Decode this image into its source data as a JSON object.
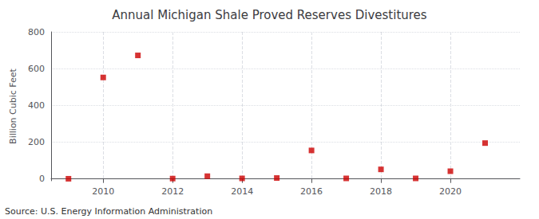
{
  "chart_data": {
    "type": "scatter",
    "title": "Annual Michigan Shale Proved Reserves Divestitures",
    "ylabel": "Billion Cubic Feet",
    "annotations": [
      "Source: U.S. Energy Information Administration"
    ],
    "x": [
      2009,
      2010,
      2011,
      2012,
      2013,
      2014,
      2015,
      2016,
      2017,
      2018,
      2019,
      2020,
      2021
    ],
    "values": [
      1,
      552,
      672,
      2,
      15,
      3,
      5,
      155,
      3,
      52,
      3,
      42,
      195
    ],
    "color": "#cc0000",
    "marker": "square",
    "xlim": [
      2008.5,
      2022.0
    ],
    "xticks": [
      2010,
      2012,
      2014,
      2016,
      2018,
      2020
    ],
    "ylim": [
      -10,
      800
    ],
    "yticks": [
      0,
      200,
      400,
      600,
      800
    ],
    "grid": true
  }
}
